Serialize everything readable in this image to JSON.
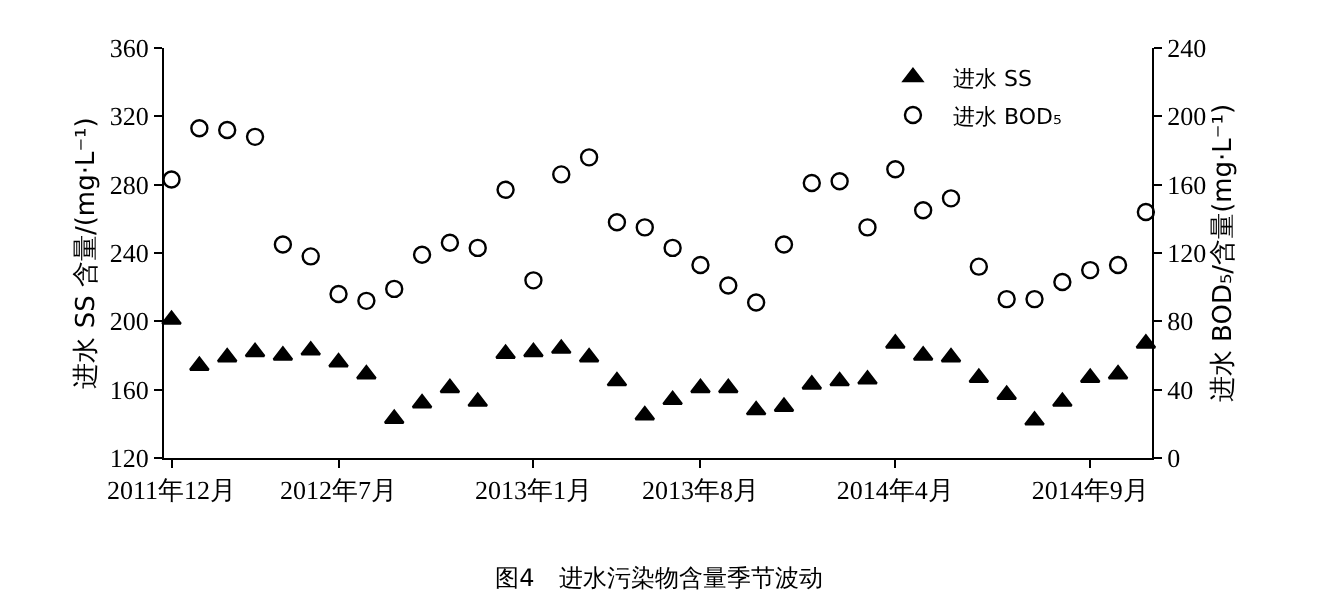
{
  "chart_data": {
    "type": "scatter",
    "title": "图4　进水污染物含量季节波动",
    "ylabel": "进水 SS 含量/(mg·L⁻¹)",
    "y2label": "进水 BOD₅/含量(mg·L⁻¹)",
    "categories": [
      "2011年12月",
      null,
      null,
      null,
      null,
      null,
      "2012年7月",
      null,
      null,
      null,
      null,
      null,
      null,
      "2013年1月",
      null,
      null,
      null,
      null,
      null,
      "2013年8月",
      null,
      null,
      null,
      null,
      null,
      null,
      "2014年4月",
      null,
      null,
      null,
      null,
      null,
      null,
      "2014年9月",
      null,
      null
    ],
    "ylim": [
      120,
      360
    ],
    "yticks": [
      120,
      160,
      200,
      240,
      280,
      320,
      360
    ],
    "y2lim": [
      0,
      240
    ],
    "y2ticks": [
      0,
      40,
      80,
      120,
      160,
      200,
      240
    ],
    "grid": false,
    "legend": "top right",
    "series": [
      {
        "name": "进水 SS",
        "color": "#000000",
        "marker": "triangle",
        "values": [
          201,
          174,
          179,
          182,
          180,
          183,
          176,
          169,
          143,
          152,
          161,
          153,
          181,
          182,
          184,
          179,
          165,
          145,
          154,
          161,
          161,
          148,
          150,
          163,
          165,
          166,
          187,
          180,
          179,
          167,
          157,
          142,
          153,
          167,
          169,
          187
        ]
      },
      {
        "name": "进水 BOD₅",
        "color": "#000000",
        "marker": "circle",
        "axis": "y2",
        "values": [
          163,
          193,
          192,
          188,
          125,
          118,
          96,
          92,
          99,
          119,
          126,
          123,
          157,
          104,
          166,
          176,
          138,
          135,
          123,
          113,
          101,
          91,
          125,
          161,
          162,
          135,
          169,
          145,
          152,
          112,
          93,
          93,
          103,
          110,
          113,
          144
        ]
      }
    ]
  }
}
